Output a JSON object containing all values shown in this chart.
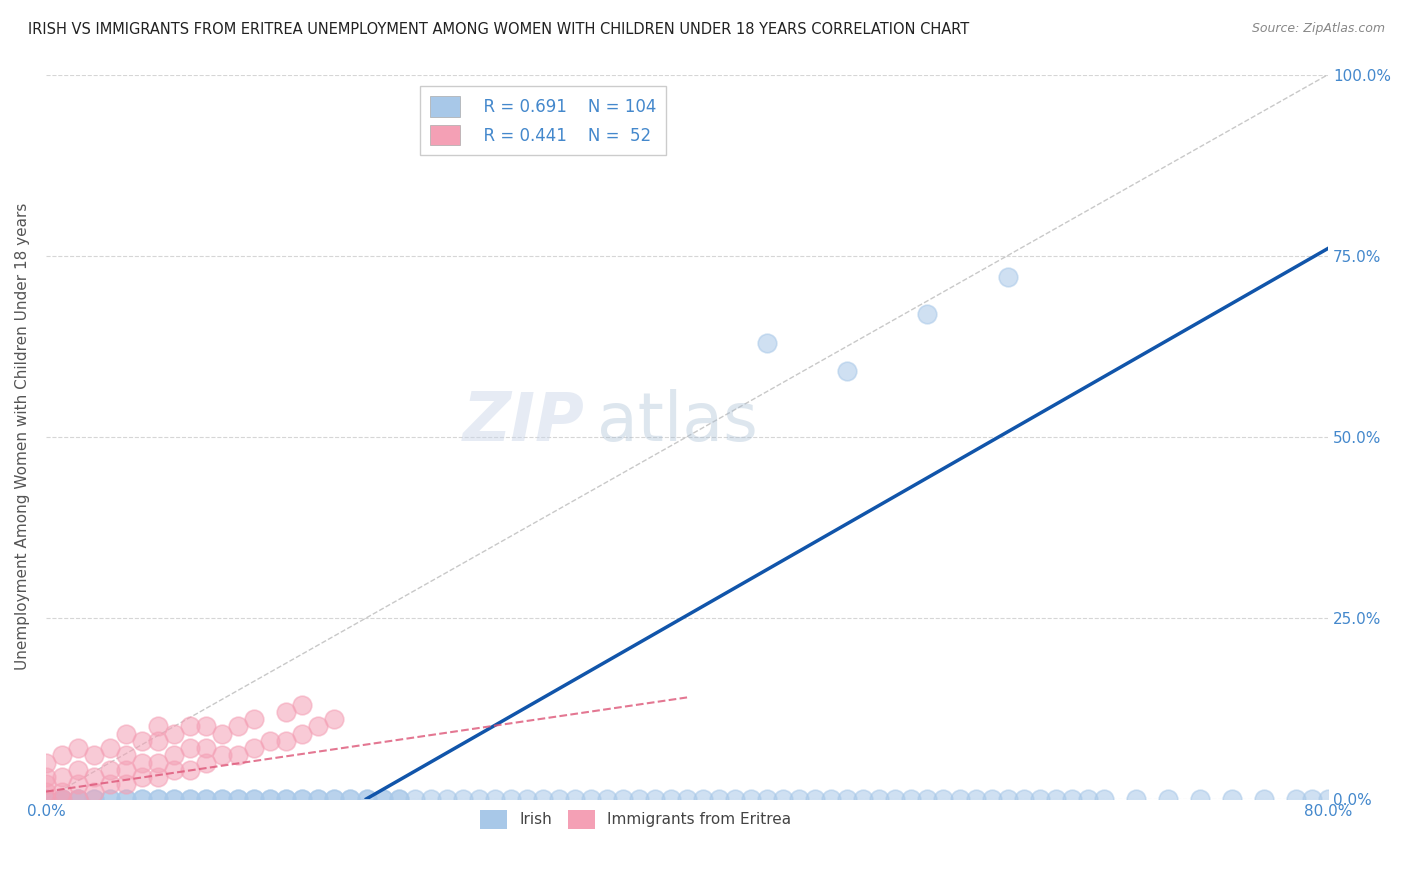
{
  "title": "IRISH VS IMMIGRANTS FROM ERITREA UNEMPLOYMENT AMONG WOMEN WITH CHILDREN UNDER 18 YEARS CORRELATION CHART",
  "source": "Source: ZipAtlas.com",
  "ylabel": "Unemployment Among Women with Children Under 18 years",
  "legend_irish_R": "0.691",
  "legend_irish_N": "104",
  "legend_eritrea_R": "0.441",
  "legend_eritrea_N": " 52",
  "irish_color": "#a8c8e8",
  "eritrea_color": "#f4a0b5",
  "trendline_irish_color": "#1155aa",
  "trendline_eritrea_color": "#dd5577",
  "watermark_zip": "ZIP",
  "watermark_atlas": "atlas",
  "background_color": "#ffffff",
  "grid_color": "#cccccc",
  "title_color": "#222222",
  "axis_label_color": "#555555",
  "tick_color": "#4488cc",
  "irish_scatter_x": [
    0.0,
    0.0,
    0.01,
    0.01,
    0.01,
    0.02,
    0.02,
    0.02,
    0.03,
    0.03,
    0.04,
    0.04,
    0.05,
    0.05,
    0.06,
    0.06,
    0.07,
    0.07,
    0.08,
    0.08,
    0.09,
    0.09,
    0.1,
    0.1,
    0.11,
    0.11,
    0.12,
    0.12,
    0.13,
    0.13,
    0.14,
    0.14,
    0.15,
    0.15,
    0.16,
    0.16,
    0.17,
    0.17,
    0.18,
    0.18,
    0.19,
    0.19,
    0.2,
    0.2,
    0.21,
    0.21,
    0.22,
    0.22,
    0.23,
    0.24,
    0.25,
    0.26,
    0.27,
    0.28,
    0.29,
    0.3,
    0.31,
    0.32,
    0.33,
    0.34,
    0.35,
    0.36,
    0.37,
    0.38,
    0.39,
    0.4,
    0.41,
    0.42,
    0.43,
    0.44,
    0.45,
    0.46,
    0.47,
    0.48,
    0.49,
    0.5,
    0.51,
    0.52,
    0.53,
    0.54,
    0.55,
    0.56,
    0.57,
    0.58,
    0.59,
    0.6,
    0.61,
    0.62,
    0.63,
    0.64,
    0.65,
    0.66,
    0.68,
    0.7,
    0.72,
    0.74,
    0.76,
    0.78,
    0.79,
    0.8,
    0.45,
    0.5,
    0.55,
    0.6
  ],
  "irish_scatter_y": [
    0.0,
    0.0,
    0.0,
    0.0,
    0.0,
    0.0,
    0.0,
    0.0,
    0.0,
    0.0,
    0.0,
    0.0,
    0.0,
    0.0,
    0.0,
    0.0,
    0.0,
    0.0,
    0.0,
    0.0,
    0.0,
    0.0,
    0.0,
    0.0,
    0.0,
    0.0,
    0.0,
    0.0,
    0.0,
    0.0,
    0.0,
    0.0,
    0.0,
    0.0,
    0.0,
    0.0,
    0.0,
    0.0,
    0.0,
    0.0,
    0.0,
    0.0,
    0.0,
    0.0,
    0.0,
    0.0,
    0.0,
    0.0,
    0.0,
    0.0,
    0.0,
    0.0,
    0.0,
    0.0,
    0.0,
    0.0,
    0.0,
    0.0,
    0.0,
    0.0,
    0.0,
    0.0,
    0.0,
    0.0,
    0.0,
    0.0,
    0.0,
    0.0,
    0.0,
    0.0,
    0.0,
    0.0,
    0.0,
    0.0,
    0.0,
    0.0,
    0.0,
    0.0,
    0.0,
    0.0,
    0.0,
    0.0,
    0.0,
    0.0,
    0.0,
    0.0,
    0.0,
    0.0,
    0.0,
    0.0,
    0.0,
    0.0,
    0.0,
    0.0,
    0.0,
    0.0,
    0.0,
    0.0,
    0.0,
    0.0,
    0.63,
    0.59,
    0.67,
    0.72
  ],
  "eritrea_scatter_x": [
    0.0,
    0.0,
    0.0,
    0.0,
    0.0,
    0.01,
    0.01,
    0.01,
    0.01,
    0.02,
    0.02,
    0.02,
    0.02,
    0.03,
    0.03,
    0.03,
    0.04,
    0.04,
    0.04,
    0.05,
    0.05,
    0.05,
    0.05,
    0.06,
    0.06,
    0.06,
    0.07,
    0.07,
    0.07,
    0.07,
    0.08,
    0.08,
    0.08,
    0.09,
    0.09,
    0.09,
    0.1,
    0.1,
    0.1,
    0.11,
    0.11,
    0.12,
    0.12,
    0.13,
    0.13,
    0.14,
    0.15,
    0.15,
    0.16,
    0.16,
    0.17,
    0.18
  ],
  "eritrea_scatter_y": [
    0.0,
    0.01,
    0.02,
    0.03,
    0.05,
    0.0,
    0.01,
    0.03,
    0.06,
    0.0,
    0.02,
    0.04,
    0.07,
    0.01,
    0.03,
    0.06,
    0.02,
    0.04,
    0.07,
    0.02,
    0.04,
    0.06,
    0.09,
    0.03,
    0.05,
    0.08,
    0.03,
    0.05,
    0.08,
    0.1,
    0.04,
    0.06,
    0.09,
    0.04,
    0.07,
    0.1,
    0.05,
    0.07,
    0.1,
    0.06,
    0.09,
    0.06,
    0.1,
    0.07,
    0.11,
    0.08,
    0.08,
    0.12,
    0.09,
    0.13,
    0.1,
    0.11
  ],
  "xlim": [
    0.0,
    0.8
  ],
  "ylim": [
    0.0,
    1.0
  ],
  "yticks": [
    0.0,
    0.25,
    0.5,
    0.75,
    1.0
  ],
  "ytick_labels": [
    "0.0%",
    "25.0%",
    "50.0%",
    "75.0%",
    "100.0%"
  ],
  "xticks": [
    0.0,
    0.2,
    0.4,
    0.6,
    0.8
  ],
  "xtick_labels": [
    "0.0%",
    "",
    "",
    "",
    "80.0%"
  ],
  "irish_trend_x0": 0.2,
  "irish_trend_x1": 0.8,
  "irish_trend_y0": 0.0,
  "irish_trend_y1": 0.76,
  "eritrea_trend_x0": 0.0,
  "eritrea_trend_x1": 0.4,
  "eritrea_trend_y0": 0.01,
  "eritrea_trend_y1": 0.14,
  "ref_line_x": [
    0.0,
    0.8
  ],
  "ref_line_y": [
    0.0,
    1.0
  ]
}
